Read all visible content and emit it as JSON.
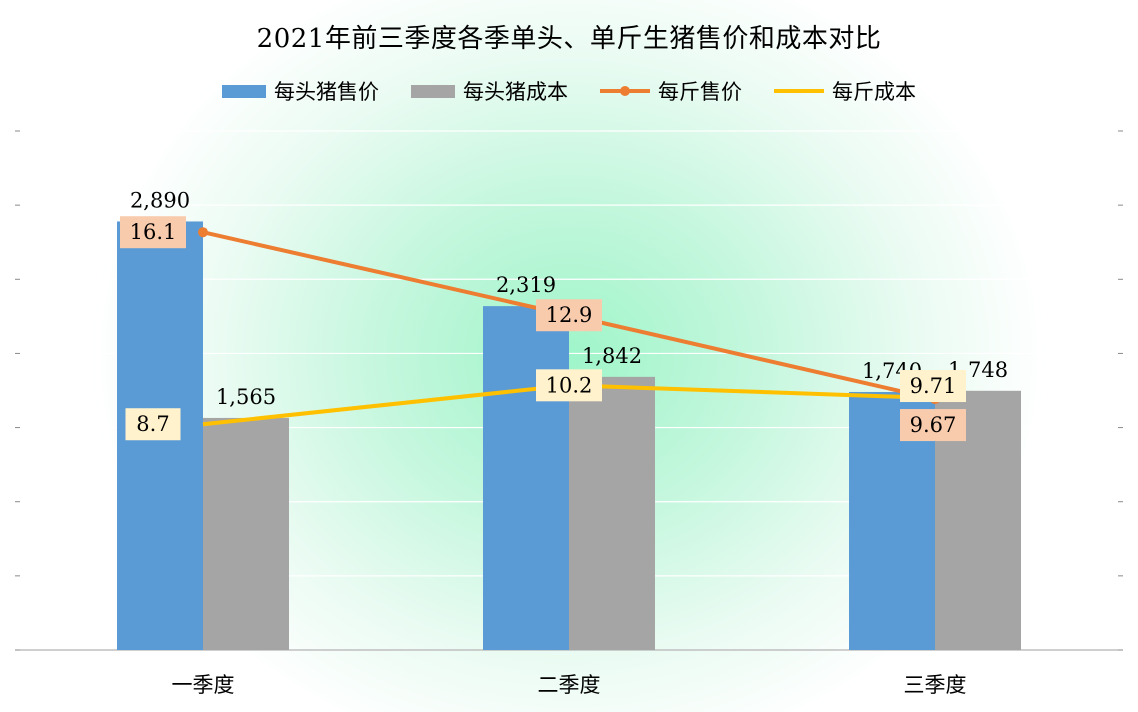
{
  "chart_data": {
    "type": "bar",
    "title": "2021年前三季度各季单头、单斤生猪售价和成本对比",
    "categories": [
      "一季度",
      "二季度",
      "三季度"
    ],
    "bar_series": [
      {
        "name": "每头猪售价",
        "color": "#5b9bd5",
        "values": [
          2890,
          2319,
          1740
        ],
        "labels": [
          "2,890",
          "2,319",
          "1,740"
        ]
      },
      {
        "name": "每头猪成本",
        "color": "#a5a5a5",
        "values": [
          1565,
          1842,
          1748
        ],
        "labels": [
          "1,565",
          "1,842",
          "1,748"
        ]
      }
    ],
    "line_series": [
      {
        "name": "每斤售价",
        "color": "#ed7d31",
        "label_bg": "#f8cbad",
        "values": [
          16.1,
          12.9,
          9.67
        ],
        "labels": [
          "16.1",
          "12.9",
          "9.67"
        ],
        "marker": true
      },
      {
        "name": "每斤成本",
        "color": "#ffc000",
        "label_bg": "#fff2cc",
        "values": [
          8.7,
          10.2,
          9.71
        ],
        "labels": [
          "8.7",
          "10.2",
          "9.71"
        ],
        "marker": false
      }
    ],
    "primary_ylim": [
      0,
      3500
    ],
    "secondary_ylim": [
      0,
      20
    ],
    "legend_position": "top",
    "grid": true
  }
}
